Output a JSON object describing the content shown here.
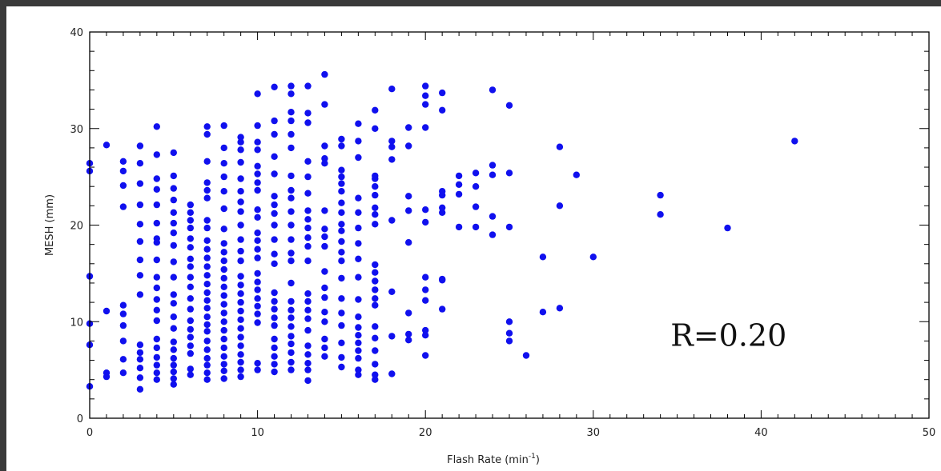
{
  "chart_data": {
    "type": "scatter",
    "xlabel": "Flash Rate (min",
    "xlabel_sup": "-1",
    "xlabel_close": ")",
    "ylabel": "MESH (mm)",
    "xlim": [
      0,
      50
    ],
    "ylim": [
      0,
      40
    ],
    "xticks": [
      0,
      10,
      20,
      30,
      40,
      50
    ],
    "yticks": [
      0,
      10,
      20,
      30,
      40
    ],
    "grid": false,
    "marker_color": "#1010ee",
    "annotation": "R=0.20",
    "points": [
      [
        0,
        3.3
      ],
      [
        0,
        7.6
      ],
      [
        0,
        9.8
      ],
      [
        0,
        14.7
      ],
      [
        0,
        25.6
      ],
      [
        0,
        26.4
      ],
      [
        1,
        4.3
      ],
      [
        1,
        4.7
      ],
      [
        1,
        11.1
      ],
      [
        1,
        28.3
      ],
      [
        2,
        4.7
      ],
      [
        2,
        6.1
      ],
      [
        2,
        8.0
      ],
      [
        2,
        9.6
      ],
      [
        2,
        10.8
      ],
      [
        2,
        11.7
      ],
      [
        2,
        21.9
      ],
      [
        2,
        24.1
      ],
      [
        2,
        25.6
      ],
      [
        2,
        26.6
      ],
      [
        3,
        3.0
      ],
      [
        3,
        4.2
      ],
      [
        3,
        5.2
      ],
      [
        3,
        6.1
      ],
      [
        3,
        6.8
      ],
      [
        3,
        7.6
      ],
      [
        3,
        12.8
      ],
      [
        3,
        14.8
      ],
      [
        3,
        16.4
      ],
      [
        3,
        18.3
      ],
      [
        3,
        20.1
      ],
      [
        3,
        22.1
      ],
      [
        3,
        24.3
      ],
      [
        3,
        26.4
      ],
      [
        3,
        28.2
      ],
      [
        4,
        4.0
      ],
      [
        4,
        4.7
      ],
      [
        4,
        5.5
      ],
      [
        4,
        6.3
      ],
      [
        4,
        7.3
      ],
      [
        4,
        8.2
      ],
      [
        4,
        10.1
      ],
      [
        4,
        11.2
      ],
      [
        4,
        12.3
      ],
      [
        4,
        13.5
      ],
      [
        4,
        14.6
      ],
      [
        4,
        16.4
      ],
      [
        4,
        18.2
      ],
      [
        4,
        18.6
      ],
      [
        4,
        20.2
      ],
      [
        4,
        22.1
      ],
      [
        4,
        23.7
      ],
      [
        4,
        24.8
      ],
      [
        4,
        27.3
      ],
      [
        4,
        30.2
      ],
      [
        5,
        3.5
      ],
      [
        5,
        4.1
      ],
      [
        5,
        4.8
      ],
      [
        5,
        5.5
      ],
      [
        5,
        6.2
      ],
      [
        5,
        7.1
      ],
      [
        5,
        7.9
      ],
      [
        5,
        9.3
      ],
      [
        5,
        10.5
      ],
      [
        5,
        11.9
      ],
      [
        5,
        12.8
      ],
      [
        5,
        14.6
      ],
      [
        5,
        16.2
      ],
      [
        5,
        17.9
      ],
      [
        5,
        19.2
      ],
      [
        5,
        20.2
      ],
      [
        5,
        21.3
      ],
      [
        5,
        22.6
      ],
      [
        5,
        23.8
      ],
      [
        5,
        25.1
      ],
      [
        5,
        27.5
      ],
      [
        6,
        4.5
      ],
      [
        6,
        5.1
      ],
      [
        6,
        6.7
      ],
      [
        6,
        7.5
      ],
      [
        6,
        8.4
      ],
      [
        6,
        9.2
      ],
      [
        6,
        10.1
      ],
      [
        6,
        11.3
      ],
      [
        6,
        12.4
      ],
      [
        6,
        13.6
      ],
      [
        6,
        14.6
      ],
      [
        6,
        15.7
      ],
      [
        6,
        16.5
      ],
      [
        6,
        17.7
      ],
      [
        6,
        18.6
      ],
      [
        6,
        19.7
      ],
      [
        6,
        20.5
      ],
      [
        6,
        21.3
      ],
      [
        6,
        22.1
      ],
      [
        7,
        4.0
      ],
      [
        7,
        4.7
      ],
      [
        7,
        5.5
      ],
      [
        7,
        6.2
      ],
      [
        7,
        7.1
      ],
      [
        7,
        8.0
      ],
      [
        7,
        9.0
      ],
      [
        7,
        9.7
      ],
      [
        7,
        10.5
      ],
      [
        7,
        11.4
      ],
      [
        7,
        12.2
      ],
      [
        7,
        13.0
      ],
      [
        7,
        13.9
      ],
      [
        7,
        14.8
      ],
      [
        7,
        15.7
      ],
      [
        7,
        16.6
      ],
      [
        7,
        17.5
      ],
      [
        7,
        18.4
      ],
      [
        7,
        19.7
      ],
      [
        7,
        20.5
      ],
      [
        7,
        22.8
      ],
      [
        7,
        23.6
      ],
      [
        7,
        24.4
      ],
      [
        7,
        26.6
      ],
      [
        7,
        29.4
      ],
      [
        7,
        30.2
      ],
      [
        8,
        4.1
      ],
      [
        8,
        4.9
      ],
      [
        8,
        5.6
      ],
      [
        8,
        6.4
      ],
      [
        8,
        7.3
      ],
      [
        8,
        8.2
      ],
      [
        8,
        9.1
      ],
      [
        8,
        10.0
      ],
      [
        8,
        10.9
      ],
      [
        8,
        11.8
      ],
      [
        8,
        12.7
      ],
      [
        8,
        13.6
      ],
      [
        8,
        14.5
      ],
      [
        8,
        15.4
      ],
      [
        8,
        16.3
      ],
      [
        8,
        17.2
      ],
      [
        8,
        18.1
      ],
      [
        8,
        19.6
      ],
      [
        8,
        21.7
      ],
      [
        8,
        23.5
      ],
      [
        8,
        25.0
      ],
      [
        8,
        26.4
      ],
      [
        8,
        28.0
      ],
      [
        8,
        30.3
      ],
      [
        9,
        4.3
      ],
      [
        9,
        5.0
      ],
      [
        9,
        5.8
      ],
      [
        9,
        6.6
      ],
      [
        9,
        7.5
      ],
      [
        9,
        8.4
      ],
      [
        9,
        9.3
      ],
      [
        9,
        10.2
      ],
      [
        9,
        11.1
      ],
      [
        9,
        12.0
      ],
      [
        9,
        12.9
      ],
      [
        9,
        13.8
      ],
      [
        9,
        14.7
      ],
      [
        9,
        16.3
      ],
      [
        9,
        17.3
      ],
      [
        9,
        18.5
      ],
      [
        9,
        20.0
      ],
      [
        9,
        21.4
      ],
      [
        9,
        22.4
      ],
      [
        9,
        23.5
      ],
      [
        9,
        24.8
      ],
      [
        9,
        26.5
      ],
      [
        9,
        27.8
      ],
      [
        9,
        28.6
      ],
      [
        9,
        29.1
      ],
      [
        10,
        5.0
      ],
      [
        10,
        5.7
      ],
      [
        10,
        9.9
      ],
      [
        10,
        10.8
      ],
      [
        10,
        11.6
      ],
      [
        10,
        12.4
      ],
      [
        10,
        13.3
      ],
      [
        10,
        14.1
      ],
      [
        10,
        15.0
      ],
      [
        10,
        16.6
      ],
      [
        10,
        17.5
      ],
      [
        10,
        18.4
      ],
      [
        10,
        19.2
      ],
      [
        10,
        20.8
      ],
      [
        10,
        21.6
      ],
      [
        10,
        23.6
      ],
      [
        10,
        24.4
      ],
      [
        10,
        25.3
      ],
      [
        10,
        26.1
      ],
      [
        10,
        27.8
      ],
      [
        10,
        28.6
      ],
      [
        10,
        30.3
      ],
      [
        10,
        33.6
      ],
      [
        11,
        4.8
      ],
      [
        11,
        5.6
      ],
      [
        11,
        6.4
      ],
      [
        11,
        7.3
      ],
      [
        11,
        8.2
      ],
      [
        11,
        9.6
      ],
      [
        11,
        10.4
      ],
      [
        11,
        11.3
      ],
      [
        11,
        12.1
      ],
      [
        11,
        13.0
      ],
      [
        11,
        16.0
      ],
      [
        11,
        17.0
      ],
      [
        11,
        18.5
      ],
      [
        11,
        20.0
      ],
      [
        11,
        21.2
      ],
      [
        11,
        22.1
      ],
      [
        11,
        23.0
      ],
      [
        11,
        25.3
      ],
      [
        11,
        27.1
      ],
      [
        11,
        29.4
      ],
      [
        11,
        30.8
      ],
      [
        11,
        34.3
      ],
      [
        12,
        5.0
      ],
      [
        12,
        5.8
      ],
      [
        12,
        6.8
      ],
      [
        12,
        7.7
      ],
      [
        12,
        8.5
      ],
      [
        12,
        9.5
      ],
      [
        12,
        10.4
      ],
      [
        12,
        11.2
      ],
      [
        12,
        12.1
      ],
      [
        12,
        14.0
      ],
      [
        12,
        16.3
      ],
      [
        12,
        17.1
      ],
      [
        12,
        18.5
      ],
      [
        12,
        20.0
      ],
      [
        12,
        21.4
      ],
      [
        12,
        22.8
      ],
      [
        12,
        23.6
      ],
      [
        12,
        25.1
      ],
      [
        12,
        28.0
      ],
      [
        12,
        29.4
      ],
      [
        12,
        30.8
      ],
      [
        12,
        31.7
      ],
      [
        12,
        33.6
      ],
      [
        12,
        34.4
      ],
      [
        13,
        3.9
      ],
      [
        13,
        5.0
      ],
      [
        13,
        5.7
      ],
      [
        13,
        6.6
      ],
      [
        13,
        7.5
      ],
      [
        13,
        9.1
      ],
      [
        13,
        10.3
      ],
      [
        13,
        11.2
      ],
      [
        13,
        12.1
      ],
      [
        13,
        12.9
      ],
      [
        13,
        16.3
      ],
      [
        13,
        17.8
      ],
      [
        13,
        18.7
      ],
      [
        13,
        19.7
      ],
      [
        13,
        20.6
      ],
      [
        13,
        21.5
      ],
      [
        13,
        23.3
      ],
      [
        13,
        25.0
      ],
      [
        13,
        26.6
      ],
      [
        13,
        30.6
      ],
      [
        13,
        31.6
      ],
      [
        13,
        34.4
      ],
      [
        14,
        6.4
      ],
      [
        14,
        7.3
      ],
      [
        14,
        8.2
      ],
      [
        14,
        10.0
      ],
      [
        14,
        11.0
      ],
      [
        14,
        12.5
      ],
      [
        14,
        13.5
      ],
      [
        14,
        15.2
      ],
      [
        14,
        17.8
      ],
      [
        14,
        18.8
      ],
      [
        14,
        19.6
      ],
      [
        14,
        21.5
      ],
      [
        14,
        26.4
      ],
      [
        14,
        26.9
      ],
      [
        14,
        28.2
      ],
      [
        14,
        32.5
      ],
      [
        14,
        35.6
      ],
      [
        15,
        5.3
      ],
      [
        15,
        6.3
      ],
      [
        15,
        7.8
      ],
      [
        15,
        9.6
      ],
      [
        15,
        10.9
      ],
      [
        15,
        12.4
      ],
      [
        15,
        14.5
      ],
      [
        15,
        16.3
      ],
      [
        15,
        17.2
      ],
      [
        15,
        18.3
      ],
      [
        15,
        19.4
      ],
      [
        15,
        20.1
      ],
      [
        15,
        21.3
      ],
      [
        15,
        22.3
      ],
      [
        15,
        23.5
      ],
      [
        15,
        24.3
      ],
      [
        15,
        25.0
      ],
      [
        15,
        25.7
      ],
      [
        15,
        28.2
      ],
      [
        15,
        28.9
      ],
      [
        16,
        4.5
      ],
      [
        16,
        5.0
      ],
      [
        16,
        6.2
      ],
      [
        16,
        7.0
      ],
      [
        16,
        7.8
      ],
      [
        16,
        8.6
      ],
      [
        16,
        9.4
      ],
      [
        16,
        10.5
      ],
      [
        16,
        12.3
      ],
      [
        16,
        14.6
      ],
      [
        16,
        16.5
      ],
      [
        16,
        18.1
      ],
      [
        16,
        19.7
      ],
      [
        16,
        21.3
      ],
      [
        16,
        22.8
      ],
      [
        16,
        27.0
      ],
      [
        16,
        28.7
      ],
      [
        16,
        30.5
      ],
      [
        17,
        4.0
      ],
      [
        17,
        4.5
      ],
      [
        17,
        5.6
      ],
      [
        17,
        7.0
      ],
      [
        17,
        8.3
      ],
      [
        17,
        9.5
      ],
      [
        17,
        11.7
      ],
      [
        17,
        12.4
      ],
      [
        17,
        13.3
      ],
      [
        17,
        14.2
      ],
      [
        17,
        15.1
      ],
      [
        17,
        15.9
      ],
      [
        17,
        20.1
      ],
      [
        17,
        21.1
      ],
      [
        17,
        21.8
      ],
      [
        17,
        23.1
      ],
      [
        17,
        24.0
      ],
      [
        17,
        24.8
      ],
      [
        17,
        25.1
      ],
      [
        17,
        30.0
      ],
      [
        17,
        31.9
      ],
      [
        18,
        4.6
      ],
      [
        18,
        8.5
      ],
      [
        18,
        13.1
      ],
      [
        18,
        20.5
      ],
      [
        18,
        26.8
      ],
      [
        18,
        28.1
      ],
      [
        18,
        28.7
      ],
      [
        18,
        34.1
      ],
      [
        19,
        8.1
      ],
      [
        19,
        8.7
      ],
      [
        19,
        10.9
      ],
      [
        19,
        18.2
      ],
      [
        19,
        21.5
      ],
      [
        19,
        23.0
      ],
      [
        19,
        28.2
      ],
      [
        19,
        30.1
      ],
      [
        20,
        6.5
      ],
      [
        20,
        8.6
      ],
      [
        20,
        9.1
      ],
      [
        20,
        12.2
      ],
      [
        20,
        13.3
      ],
      [
        20,
        14.6
      ],
      [
        20,
        20.3
      ],
      [
        20,
        21.6
      ],
      [
        20,
        30.1
      ],
      [
        20,
        32.5
      ],
      [
        20,
        33.4
      ],
      [
        20,
        34.4
      ],
      [
        21,
        11.3
      ],
      [
        21,
        14.4
      ],
      [
        21,
        14.3
      ],
      [
        21,
        21.3
      ],
      [
        21,
        21.8
      ],
      [
        21,
        23.1
      ],
      [
        21,
        23.5
      ],
      [
        21,
        31.9
      ],
      [
        21,
        33.7
      ],
      [
        22,
        19.8
      ],
      [
        22,
        23.2
      ],
      [
        22,
        24.2
      ],
      [
        22,
        25.1
      ],
      [
        23,
        19.8
      ],
      [
        23,
        21.9
      ],
      [
        23,
        24.0
      ],
      [
        23,
        25.4
      ],
      [
        24,
        19.0
      ],
      [
        24,
        20.9
      ],
      [
        24,
        25.2
      ],
      [
        24,
        26.2
      ],
      [
        24,
        34.0
      ],
      [
        25,
        8.0
      ],
      [
        25,
        8.8
      ],
      [
        25,
        10.0
      ],
      [
        25,
        19.8
      ],
      [
        25,
        25.4
      ],
      [
        25,
        32.4
      ],
      [
        26,
        6.5
      ],
      [
        27,
        11.0
      ],
      [
        27,
        16.7
      ],
      [
        28,
        11.4
      ],
      [
        28,
        22.0
      ],
      [
        28,
        28.1
      ],
      [
        29,
        25.2
      ],
      [
        30,
        16.7
      ],
      [
        34,
        21.1
      ],
      [
        34,
        23.1
      ],
      [
        38,
        19.7
      ],
      [
        42,
        28.7
      ]
    ]
  }
}
